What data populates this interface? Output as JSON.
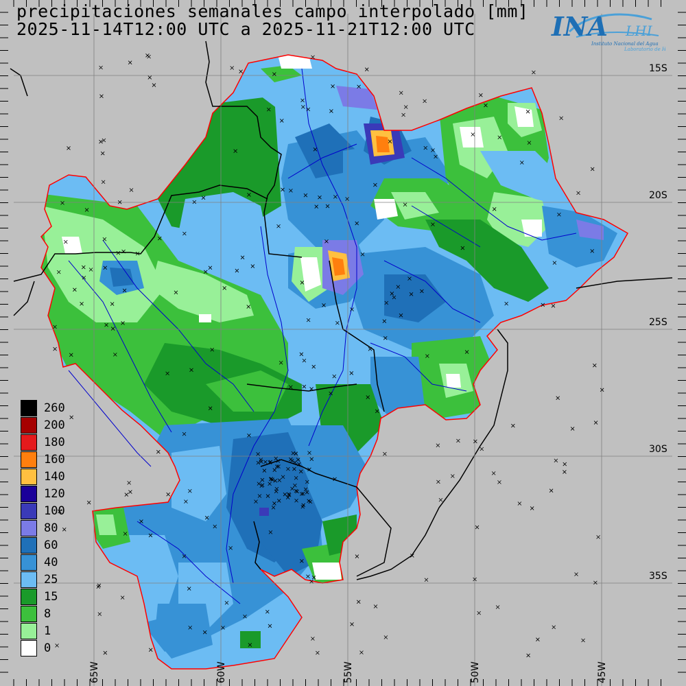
{
  "title": {
    "line1": "precipitaciones semanales campo interpolado [mm]",
    "line2": "2025-11-14T12:00 UTC a 2025-11-21T12:00 UTC"
  },
  "logo": {
    "main": "INA",
    "secondary": "LHI",
    "subtitle1": "Instituto Nacional del Agua",
    "subtitle2": "Laboratorio de Hidrología",
    "colors": {
      "text": "#1e6fb5",
      "swoosh": "#4aa0d8"
    }
  },
  "lat_labels": [
    "15S",
    "20S",
    "25S",
    "30S",
    "35S"
  ],
  "lon_labels": [
    "65W",
    "60W",
    "55W",
    "50W",
    "45W"
  ],
  "legend": [
    {
      "label": "260",
      "color": "#000000"
    },
    {
      "label": "200",
      "color": "#a50000"
    },
    {
      "label": "180",
      "color": "#e41a1c"
    },
    {
      "label": "160",
      "color": "#ff7f0e"
    },
    {
      "label": "140",
      "color": "#ffc040"
    },
    {
      "label": "120",
      "color": "#1a0099"
    },
    {
      "label": "100",
      "color": "#3a3ab8"
    },
    {
      "label": "80",
      "color": "#7b7be6"
    },
    {
      "label": "60",
      "color": "#1f70b8"
    },
    {
      "label": "40",
      "color": "#3792d6"
    },
    {
      "label": "25",
      "color": "#6cbcf3"
    },
    {
      "label": "15",
      "color": "#1a9a2a"
    },
    {
      "label": "8",
      "color": "#3cc03c"
    },
    {
      "label": "1",
      "color": "#98f098"
    },
    {
      "label": "0",
      "color": "#ffffff"
    }
  ],
  "colors": {
    "background": "#c0c0c0",
    "basin_outline": "#ff0000",
    "rivers": "#0000cc",
    "borders": "#000000",
    "grid": "#808080"
  }
}
